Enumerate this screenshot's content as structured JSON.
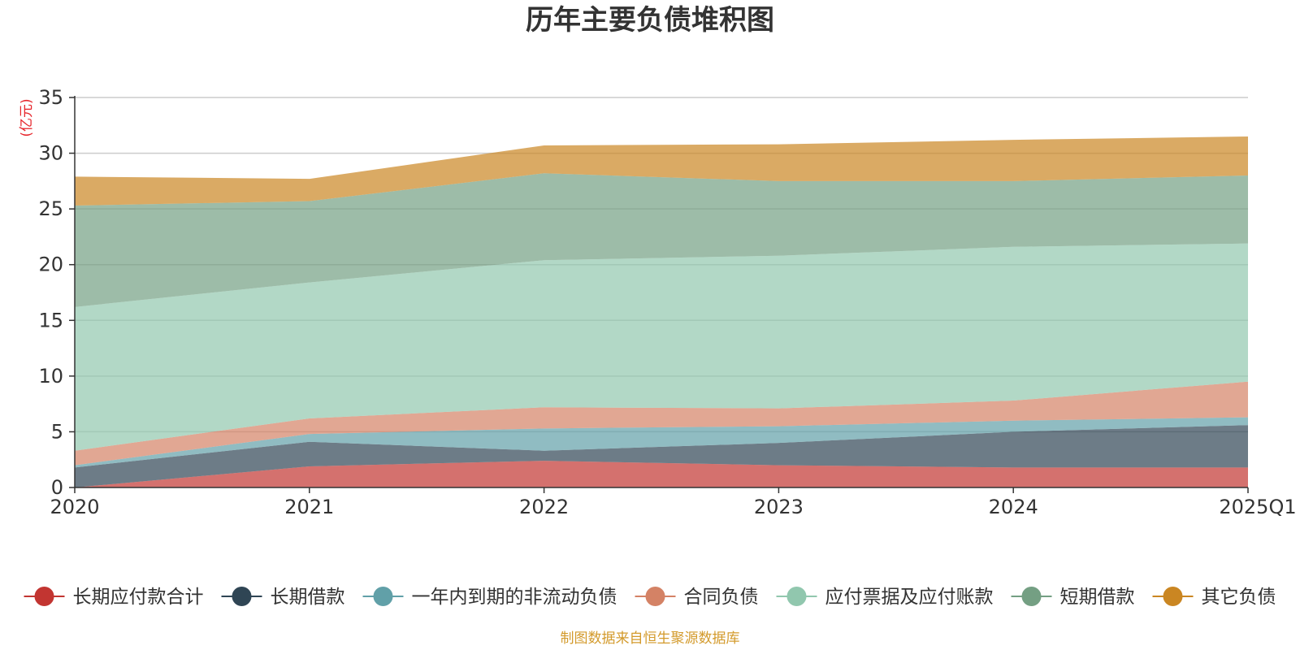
{
  "chart_data": {
    "type": "area",
    "stacked": true,
    "title": "历年主要负债堆积图",
    "ylabel": "(亿元)",
    "xlabel": "",
    "categories": [
      "2020",
      "2021",
      "2022",
      "2023",
      "2024",
      "2025Q1"
    ],
    "y_ticks": [
      "0",
      "5",
      "10",
      "15",
      "20",
      "25",
      "30",
      "35"
    ],
    "ylim": [
      0,
      35
    ],
    "grid": true,
    "legend_position": "bottom",
    "series": [
      {
        "name": "长期应付款合计",
        "color": "#c23531",
        "values": [
          0.0,
          1.9,
          2.4,
          2.0,
          1.8,
          1.8
        ]
      },
      {
        "name": "长期借款",
        "color": "#2f4554",
        "values": [
          1.8,
          2.2,
          0.9,
          2.0,
          3.2,
          3.8
        ]
      },
      {
        "name": "一年内到期的非流动负债",
        "color": "#61a0a8",
        "values": [
          0.2,
          0.7,
          2.0,
          1.5,
          1.0,
          0.7
        ]
      },
      {
        "name": "合同负债",
        "color": "#d48265",
        "values": [
          1.3,
          1.4,
          1.9,
          1.6,
          1.8,
          3.2
        ]
      },
      {
        "name": "应付票据及应付账款",
        "color": "#91c7ae",
        "values": [
          12.9,
          12.2,
          13.2,
          13.7,
          13.8,
          12.4
        ]
      },
      {
        "name": "短期借款",
        "color": "#749f83",
        "values": [
          9.1,
          7.3,
          7.8,
          6.7,
          5.9,
          6.1
        ]
      },
      {
        "name": "其它负债",
        "color": "#ca8622",
        "values": [
          2.6,
          2.0,
          2.5,
          3.3,
          3.7,
          3.5
        ]
      }
    ],
    "source_note": "制图数据来自恒生聚源数据库"
  }
}
